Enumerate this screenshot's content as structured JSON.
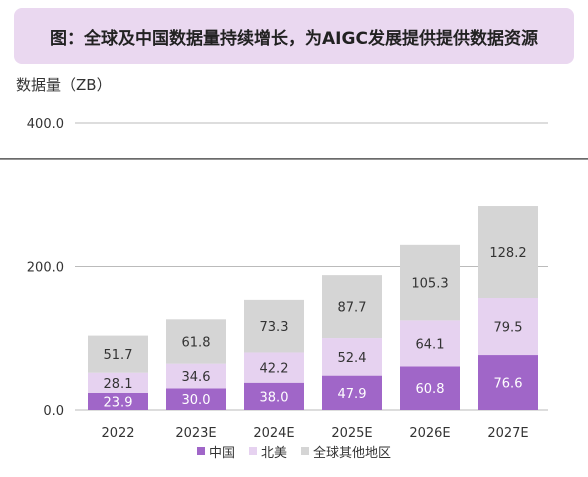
{
  "title": "图：全球及中国数据量持续增长，为AIGC发展提供提供数据资源",
  "unit_label": "数据量（ZB）",
  "colors": {
    "title_bg": "#ead8f0",
    "china": "#a066c8",
    "north_america": "#e6d2f0",
    "other": "#d5d5d5",
    "grid": "#bbbbbb",
    "reference_line": "#555555"
  },
  "chart_data": {
    "type": "bar",
    "stacked": true,
    "categories": [
      "2022",
      "2023E",
      "2024E",
      "2025E",
      "2026E",
      "2027E"
    ],
    "series": [
      {
        "name": "中国",
        "values": [
          23.9,
          30.0,
          38.0,
          47.9,
          60.8,
          76.6
        ],
        "labels": [
          "23.9",
          "30.0",
          "38.0",
          "47.9",
          "60.8",
          "76.6"
        ]
      },
      {
        "name": "北美",
        "values": [
          28.1,
          34.6,
          42.2,
          52.4,
          64.1,
          79.5
        ],
        "labels": [
          "28.1",
          "34.6",
          "42.2",
          "52.4",
          "64.1",
          "79.5"
        ]
      },
      {
        "name": "全球其他地区",
        "values": [
          51.7,
          61.8,
          73.3,
          87.7,
          105.3,
          128.2
        ],
        "labels": [
          "51.7",
          "61.8",
          "73.3",
          "87.7",
          "105.3",
          "128.2"
        ]
      }
    ],
    "yticks": [
      "0.0",
      "200.0",
      "400.0"
    ],
    "ytick_values": [
      0,
      200,
      400
    ],
    "ylim": [
      0,
      400
    ],
    "reference_line": 350,
    "grid": true,
    "legend_position": "bottom"
  }
}
